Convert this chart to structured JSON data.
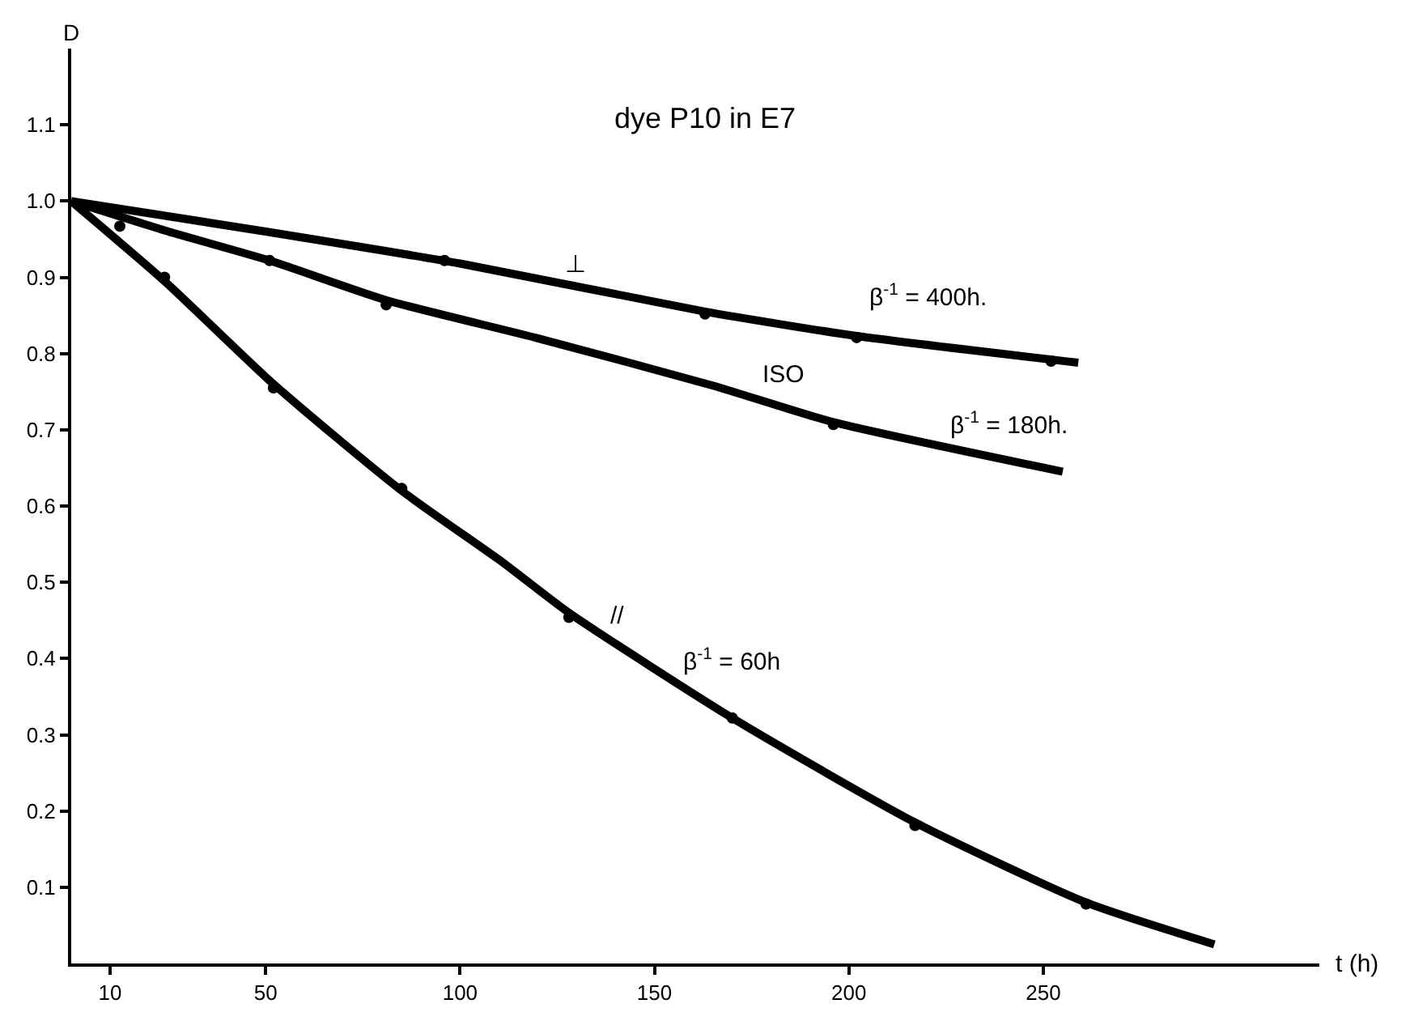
{
  "chart_data": {
    "type": "line",
    "title": "dye P10 in E7",
    "xlabel": "t (h)",
    "ylabel": "D",
    "xlim": [
      0,
      321
    ],
    "ylim": [
      0,
      1.2
    ],
    "xticks": [
      10,
      50,
      100,
      150,
      200,
      250
    ],
    "yticks": [
      0.1,
      0.2,
      0.3,
      0.4,
      0.5,
      0.6,
      0.7,
      0.8,
      0.9,
      {
        "value": 1.0,
        "label": "1.0"
      },
      1.1
    ],
    "line_style": "solid",
    "series": [
      {
        "color": "#000000",
        "marker": "none",
        "x": [
          0,
          50,
          100,
          163,
          202,
          259
        ],
        "values": [
          1.0,
          0.96,
          0.918,
          0.855,
          0.823,
          0.788
        ]
      },
      {
        "type": "scatter",
        "color": "#000000",
        "marker": "circle",
        "x": [
          96,
          163,
          202,
          252
        ],
        "values": [
          0.922,
          0.852,
          0.821,
          0.79
        ]
      },
      {
        "color": "#000000",
        "marker": "none",
        "x": [
          0,
          25,
          51,
          81,
          120,
          165,
          196,
          255
        ],
        "values": [
          1.0,
          0.96,
          0.922,
          0.87,
          0.82,
          0.758,
          0.71,
          0.645
        ]
      },
      {
        "type": "scatter",
        "color": "#000000",
        "marker": "circle",
        "x": [
          12.5,
          51,
          81,
          196
        ],
        "values": [
          0.967,
          0.922,
          0.864,
          0.707
        ]
      },
      {
        "color": "#000000",
        "marker": "none",
        "x": [
          0,
          24,
          52,
          85,
          111,
          128,
          170,
          217,
          261,
          294
        ],
        "values": [
          1.0,
          0.895,
          0.76,
          0.62,
          0.526,
          0.46,
          0.322,
          0.185,
          0.08,
          0.025
        ]
      },
      {
        "type": "scatter",
        "color": "#000000",
        "marker": "circle",
        "x": [
          24,
          52,
          85,
          128,
          170,
          217,
          261
        ],
        "values": [
          0.9,
          0.755,
          0.623,
          0.454,
          0.322,
          0.181,
          0.078
        ]
      }
    ],
    "annotations": [
      "⊥",
      "β$^{-1}$ = 400h.",
      "ISO",
      "β$^{-1}$ = 180h.",
      "//",
      "β$^{-1}$ = 60h"
    ]
  }
}
